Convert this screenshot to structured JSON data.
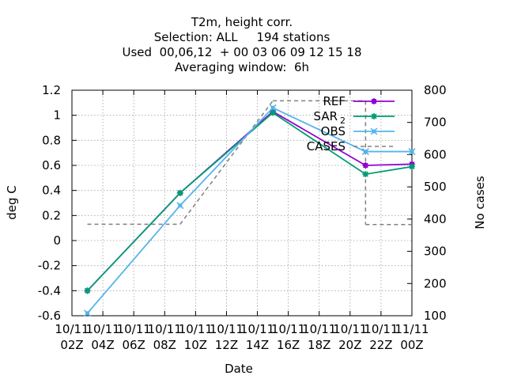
{
  "chart_data": {
    "type": "line",
    "title_lines": [
      "T2m, height corr.",
      "Selection: ALL     194 stations",
      "Used  00,06,12  + 00 03 06 09 12 15 18",
      "Averaging window:  6h"
    ],
    "xlabel": "Date",
    "ylabel": "deg C",
    "y2label": "No cases",
    "x_ticks": [
      {
        "t": 2,
        "line1": "10/11",
        "line2": "02Z"
      },
      {
        "t": 4,
        "line1": "10/11",
        "line2": "04Z"
      },
      {
        "t": 6,
        "line1": "10/11",
        "line2": "06Z"
      },
      {
        "t": 8,
        "line1": "10/11",
        "line2": "08Z"
      },
      {
        "t": 10,
        "line1": "10/11",
        "line2": "10Z"
      },
      {
        "t": 12,
        "line1": "10/11",
        "line2": "12Z"
      },
      {
        "t": 14,
        "line1": "10/11",
        "line2": "14Z"
      },
      {
        "t": 16,
        "line1": "10/11",
        "line2": "16Z"
      },
      {
        "t": 18,
        "line1": "10/11",
        "line2": "18Z"
      },
      {
        "t": 20,
        "line1": "10/11",
        "line2": "20Z"
      },
      {
        "t": 22,
        "line1": "10/11",
        "line2": "22Z"
      },
      {
        "t": 24,
        "line1": "11/11",
        "line2": "00Z"
      }
    ],
    "xlim": [
      2,
      24
    ],
    "ylim": [
      -0.6,
      1.2
    ],
    "y_ticks": [
      "-0.6",
      "-0.4",
      "-0.2",
      "0",
      "0.2",
      "0.4",
      "0.6",
      "0.8",
      "1",
      "1.2"
    ],
    "y2lim": [
      100,
      800
    ],
    "y2_ticks": [
      "100",
      "200",
      "300",
      "400",
      "500",
      "600",
      "700",
      "800"
    ],
    "grid": true,
    "legend_position": "top-right",
    "series": [
      {
        "name": "REF",
        "color": "#9400d3",
        "marker": "plus-filled",
        "x": [
          3,
          9,
          15,
          21,
          24
        ],
        "y": [
          -0.4,
          0.38,
          1.03,
          0.6,
          0.61
        ]
      },
      {
        "name": "SAR",
        "name_sub": "2",
        "color": "#009e73",
        "marker": "star",
        "x": [
          3,
          9,
          15,
          21,
          24
        ],
        "y": [
          -0.4,
          0.38,
          1.02,
          0.53,
          0.59
        ]
      },
      {
        "name": "OBS",
        "color": "#56b4e9",
        "marker": "cross",
        "x": [
          3,
          9,
          15,
          21,
          24
        ],
        "y": [
          -0.58,
          0.28,
          1.06,
          0.71,
          0.71
        ]
      }
    ],
    "cases": {
      "name": "CASES",
      "color": "#808080",
      "dash": true,
      "axis": "y2",
      "steps": [
        {
          "x0": 3,
          "x1": 9,
          "y": 384
        },
        {
          "x0": 15,
          "x1": 21,
          "y": 767
        },
        {
          "x0": 21,
          "x1": 24,
          "y": 383
        }
      ]
    }
  }
}
